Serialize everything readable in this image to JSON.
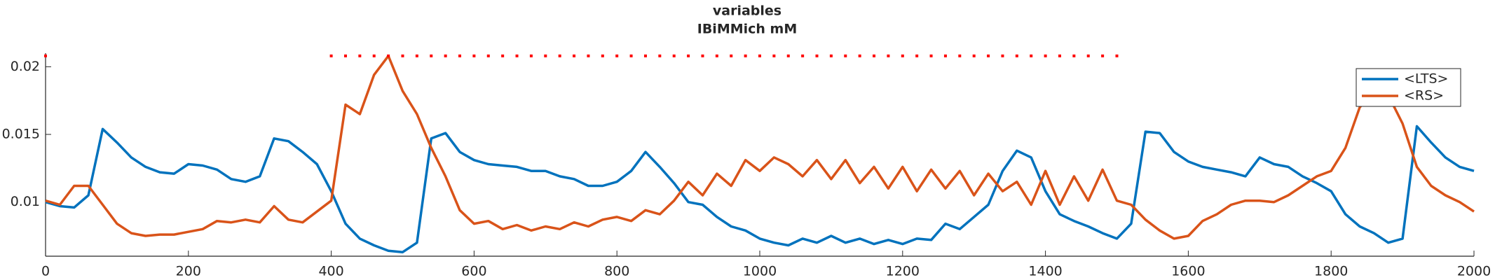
{
  "chart_data": {
    "type": "line",
    "title": "variables",
    "subtitle": "IBiMMich mM",
    "x": [
      0,
      20,
      40,
      60,
      80,
      100,
      120,
      140,
      160,
      180,
      200,
      220,
      240,
      260,
      280,
      300,
      320,
      340,
      360,
      380,
      400,
      420,
      440,
      460,
      480,
      500,
      520,
      540,
      560,
      580,
      600,
      620,
      640,
      660,
      680,
      700,
      720,
      740,
      760,
      780,
      800,
      820,
      840,
      860,
      880,
      900,
      920,
      940,
      960,
      980,
      1000,
      1020,
      1040,
      1060,
      1080,
      1100,
      1120,
      1140,
      1160,
      1180,
      1200,
      1220,
      1240,
      1260,
      1280,
      1300,
      1320,
      1340,
      1360,
      1380,
      1400,
      1420,
      1440,
      1460,
      1480,
      1500,
      1520,
      1540,
      1560,
      1580,
      1600,
      1620,
      1640,
      1660,
      1680,
      1700,
      1720,
      1740,
      1760,
      1780,
      1800,
      1820,
      1840,
      1860,
      1880,
      1900,
      1920,
      1940,
      1960,
      1980,
      2000
    ],
    "series": [
      {
        "name": "<LTS>",
        "color": "#0072bd",
        "values": [
          0.01,
          0.0097,
          0.0096,
          0.0105,
          0.0154,
          0.0144,
          0.0133,
          0.0126,
          0.0122,
          0.0121,
          0.0128,
          0.0127,
          0.0124,
          0.0117,
          0.0115,
          0.0119,
          0.0147,
          0.0145,
          0.0137,
          0.0128,
          0.0108,
          0.0084,
          0.0073,
          0.0068,
          0.0064,
          0.0063,
          0.007,
          0.0147,
          0.0151,
          0.0137,
          0.0131,
          0.0128,
          0.0127,
          0.0126,
          0.0123,
          0.0123,
          0.0119,
          0.0117,
          0.0112,
          0.0112,
          0.0115,
          0.0123,
          0.0137,
          0.0126,
          0.0114,
          0.01,
          0.0098,
          0.0089,
          0.0082,
          0.0079,
          0.0073,
          0.007,
          0.0068,
          0.0073,
          0.007,
          0.0075,
          0.007,
          0.0073,
          0.0069,
          0.0072,
          0.0069,
          0.0073,
          0.0072,
          0.0084,
          0.008,
          0.0089,
          0.0098,
          0.0123,
          0.0138,
          0.0133,
          0.0108,
          0.0091,
          0.0086,
          0.0082,
          0.0077,
          0.0073,
          0.0084,
          0.0152,
          0.0151,
          0.0137,
          0.013,
          0.0126,
          0.0124,
          0.0122,
          0.0119,
          0.0133,
          0.0128,
          0.0126,
          0.0119,
          0.0114,
          0.0108,
          0.0091,
          0.0082,
          0.0077,
          0.007,
          0.0073,
          0.0156,
          0.0144,
          0.0133,
          0.0126,
          0.0123
        ]
      },
      {
        "name": "<RS>",
        "color": "#d95319",
        "values": [
          0.0101,
          0.0098,
          0.0112,
          0.0112,
          0.0098,
          0.0084,
          0.0077,
          0.0075,
          0.0076,
          0.0076,
          0.0078,
          0.008,
          0.0086,
          0.0085,
          0.0087,
          0.0085,
          0.0097,
          0.0087,
          0.0085,
          0.0093,
          0.0101,
          0.0172,
          0.0165,
          0.0194,
          0.0208,
          0.0182,
          0.0165,
          0.014,
          0.0119,
          0.0094,
          0.0084,
          0.0086,
          0.008,
          0.0083,
          0.0079,
          0.0082,
          0.008,
          0.0085,
          0.0082,
          0.0087,
          0.0089,
          0.0086,
          0.0094,
          0.0091,
          0.0101,
          0.0115,
          0.0105,
          0.0121,
          0.0112,
          0.0131,
          0.0123,
          0.0133,
          0.0128,
          0.0119,
          0.0131,
          0.0117,
          0.0131,
          0.0114,
          0.0126,
          0.011,
          0.0126,
          0.0108,
          0.0124,
          0.011,
          0.0123,
          0.0105,
          0.0121,
          0.0108,
          0.0115,
          0.0098,
          0.0123,
          0.0098,
          0.0119,
          0.0101,
          0.0124,
          0.0101,
          0.0098,
          0.0087,
          0.0079,
          0.0073,
          0.0075,
          0.0086,
          0.0091,
          0.0098,
          0.0101,
          0.0101,
          0.01,
          0.0105,
          0.0112,
          0.0119,
          0.0123,
          0.014,
          0.017,
          0.0182,
          0.0179,
          0.0158,
          0.0126,
          0.0112,
          0.0105,
          0.01,
          0.0093
        ]
      }
    ],
    "markers": {
      "color": "#ff0000",
      "x": [
        0,
        400,
        420,
        440,
        460,
        480,
        500,
        520,
        540,
        560,
        580,
        600,
        620,
        640,
        660,
        680,
        700,
        720,
        740,
        760,
        780,
        800,
        820,
        840,
        860,
        880,
        900,
        920,
        940,
        960,
        980,
        1000,
        1020,
        1040,
        1060,
        1080,
        1100,
        1120,
        1140,
        1160,
        1180,
        1200,
        1220,
        1240,
        1260,
        1280,
        1300,
        1320,
        1340,
        1360,
        1380,
        1400,
        1420,
        1440,
        1460,
        1480,
        1500
      ],
      "values": [
        0.0208,
        0.0208,
        0.0208,
        0.0208,
        0.0208,
        0.0208,
        0.0208,
        0.0208,
        0.0208,
        0.0208,
        0.0208,
        0.0208,
        0.0208,
        0.0208,
        0.0208,
        0.0208,
        0.0208,
        0.0208,
        0.0208,
        0.0208,
        0.0208,
        0.0208,
        0.0208,
        0.0208,
        0.0208,
        0.0208,
        0.0208,
        0.0208,
        0.0208,
        0.0208,
        0.0208,
        0.0208,
        0.0208,
        0.0208,
        0.0208,
        0.0208,
        0.0208,
        0.0208,
        0.0208,
        0.0208,
        0.0208,
        0.0208,
        0.0208,
        0.0208,
        0.0208,
        0.0208,
        0.0208,
        0.0208,
        0.0208,
        0.0208,
        0.0208,
        0.0208,
        0.0208,
        0.0208,
        0.0208,
        0.0208,
        0.0208
      ]
    },
    "xlim": [
      0,
      2000
    ],
    "xticks": [
      0,
      200,
      400,
      600,
      800,
      1000,
      1200,
      1400,
      1600,
      1800,
      2000
    ],
    "ylim": [
      0.006,
      0.021
    ],
    "yticks": [
      0.01,
      0.015,
      0.02
    ],
    "legend": "top-right",
    "grid": false
  }
}
